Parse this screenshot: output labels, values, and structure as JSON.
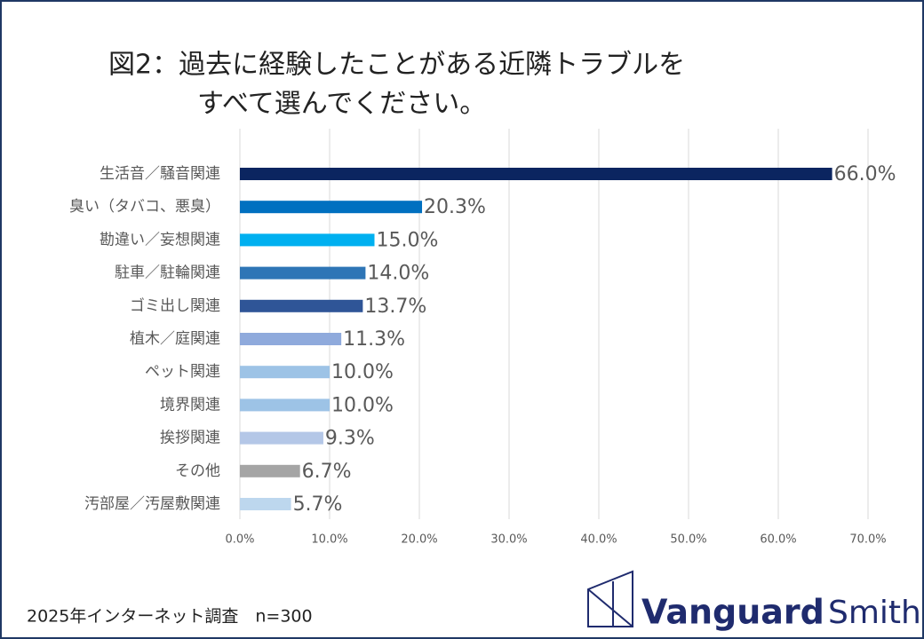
{
  "chart_data": {
    "type": "bar",
    "orientation": "horizontal",
    "title_lines": [
      "図2：過去に経験したことがある近隣トラブルを",
      "すべて選んでください。"
    ],
    "categories": [
      "生活音／騒音関連",
      "臭い（タバコ、悪臭）",
      "勘違い／妄想関連",
      "駐車／駐輪関連",
      "ゴミ出し関連",
      "植木／庭関連",
      "ペット関連",
      "境界関連",
      "挨拶関連",
      "その他",
      "汚部屋／汚屋敷関連"
    ],
    "values": [
      66.0,
      20.3,
      15.0,
      14.0,
      13.7,
      11.3,
      10.0,
      10.0,
      9.3,
      6.7,
      5.7
    ],
    "value_labels": [
      "66.0%",
      "20.3%",
      "15.0%",
      "14.0%",
      "13.7%",
      "11.3%",
      "10.0%",
      "10.0%",
      "9.3%",
      "6.7%",
      "5.7%"
    ],
    "colors": [
      "#0b2560",
      "#0070c0",
      "#00b0f0",
      "#2e75b6",
      "#2f5597",
      "#8faadc",
      "#9dc3e6",
      "#9dc3e6",
      "#b4c7e7",
      "#a5a5a5",
      "#bdd7ee"
    ],
    "xlim": [
      0,
      70
    ],
    "xticks": [
      {
        "value": 0,
        "label": "0.0%"
      },
      {
        "value": 10,
        "label": "10.0%"
      },
      {
        "value": 20,
        "label": "20.0%"
      },
      {
        "value": 30,
        "label": "30.0%"
      },
      {
        "value": 40,
        "label": "40.0%"
      },
      {
        "value": 50,
        "label": "50.0%"
      },
      {
        "value": 60,
        "label": "60.0%"
      },
      {
        "value": 70,
        "label": "70.0%"
      }
    ],
    "grid": true
  },
  "footer": "2025年インターネット調査　n=300",
  "logo": {
    "text1": "Vanguard",
    "text2": "Smith"
  }
}
